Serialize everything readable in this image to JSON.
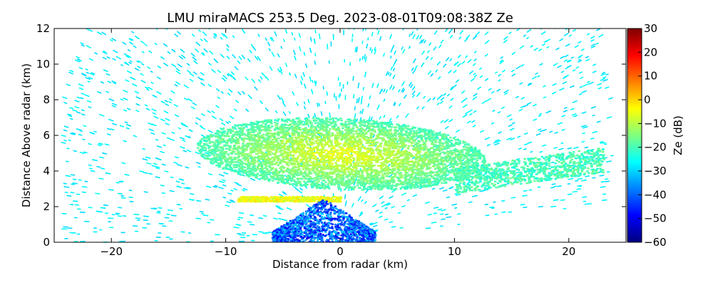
{
  "chart_data": {
    "type": "heatmap",
    "title": "LMU miraMACS 253.5 Deg. 2023-08-01T09:08:38Z  Ze",
    "xlabel": "Distance from radar (km)",
    "ylabel": "Distance Above radar  (km)",
    "xlim": [
      -25,
      25
    ],
    "ylim": [
      0,
      12
    ],
    "x_ticks": [
      -20,
      -10,
      0,
      10,
      20
    ],
    "y_ticks": [
      0,
      2,
      4,
      6,
      8,
      10,
      12
    ],
    "x_tick_labels": [
      "−20",
      "−10",
      "0",
      "10",
      "20"
    ],
    "y_tick_labels": [
      "0",
      "2",
      "4",
      "6",
      "8",
      "10",
      "12"
    ],
    "colorbar": {
      "label": "Ze (dB)",
      "range": [
        -60,
        30
      ],
      "ticks": [
        30,
        20,
        10,
        0,
        -10,
        -20,
        -30,
        -40,
        -50,
        -60
      ],
      "tick_labels": [
        "30",
        "20",
        "10",
        "0",
        "−10",
        "−20",
        "−30",
        "−40",
        "−50",
        "−60"
      ],
      "colormap": "jet"
    },
    "features": [
      {
        "name": "cloud layer",
        "x_range": [
          -12,
          12
        ],
        "y_range": [
          3,
          7
        ],
        "ze_range": [
          -20,
          -5
        ]
      },
      {
        "name": "melting layer band",
        "x_range": [
          -9,
          0
        ],
        "y_range": [
          2.3,
          2.6
        ],
        "ze_range": [
          -10,
          0
        ]
      },
      {
        "name": "near-radar echo",
        "x_range": [
          -6,
          3
        ],
        "y_range": [
          0,
          2.5
        ],
        "ze_range": [
          -50,
          -30
        ]
      },
      {
        "name": "noise field",
        "x_range": [
          -24,
          24
        ],
        "y_range": [
          0,
          12
        ],
        "ze_range": [
          -30,
          -25
        ]
      }
    ]
  }
}
